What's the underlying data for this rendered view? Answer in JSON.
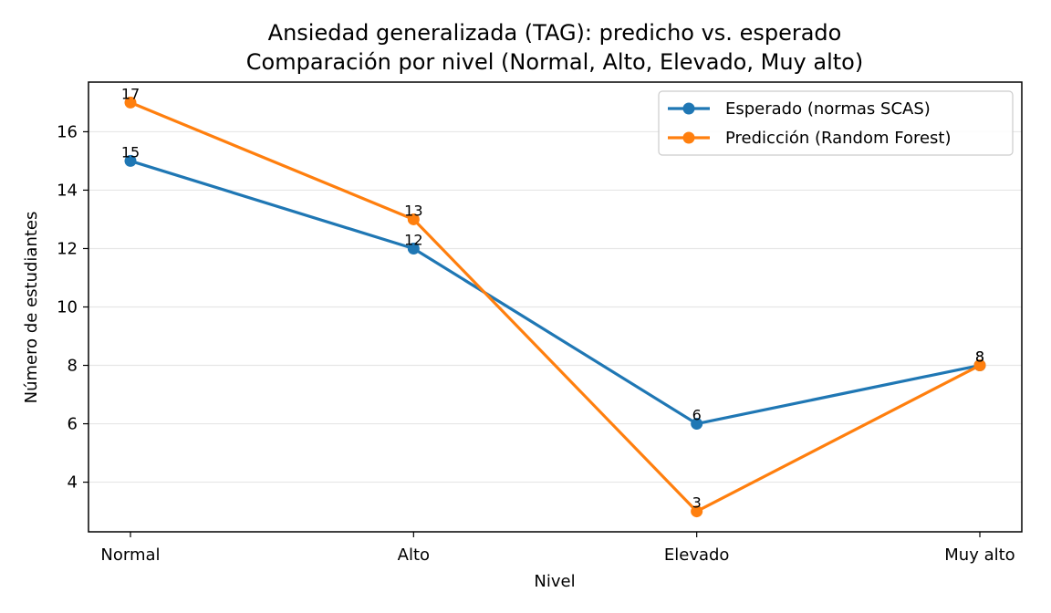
{
  "chart_data": {
    "type": "line",
    "title": "Ansiedad generalizada (TAG): predicho vs. esperado",
    "subtitle": "Comparación por nivel (Normal, Alto, Elevado, Muy alto)",
    "xlabel": "Nivel",
    "ylabel": "Número de estudiantes",
    "categories": [
      "Normal",
      "Alto",
      "Elevado",
      "Muy alto"
    ],
    "ylim": [
      2.3,
      17.7
    ],
    "yticks": [
      4,
      6,
      8,
      10,
      12,
      14,
      16
    ],
    "grid": "horizontal",
    "legend_position": "top-right",
    "series": [
      {
        "name": "Esperado (normas SCAS)",
        "color": "#1f77b4",
        "values": [
          15,
          12,
          6,
          8
        ]
      },
      {
        "name": "Predicción (Random Forest)",
        "color": "#ff7f0e",
        "values": [
          17,
          13,
          3,
          8
        ]
      }
    ]
  }
}
